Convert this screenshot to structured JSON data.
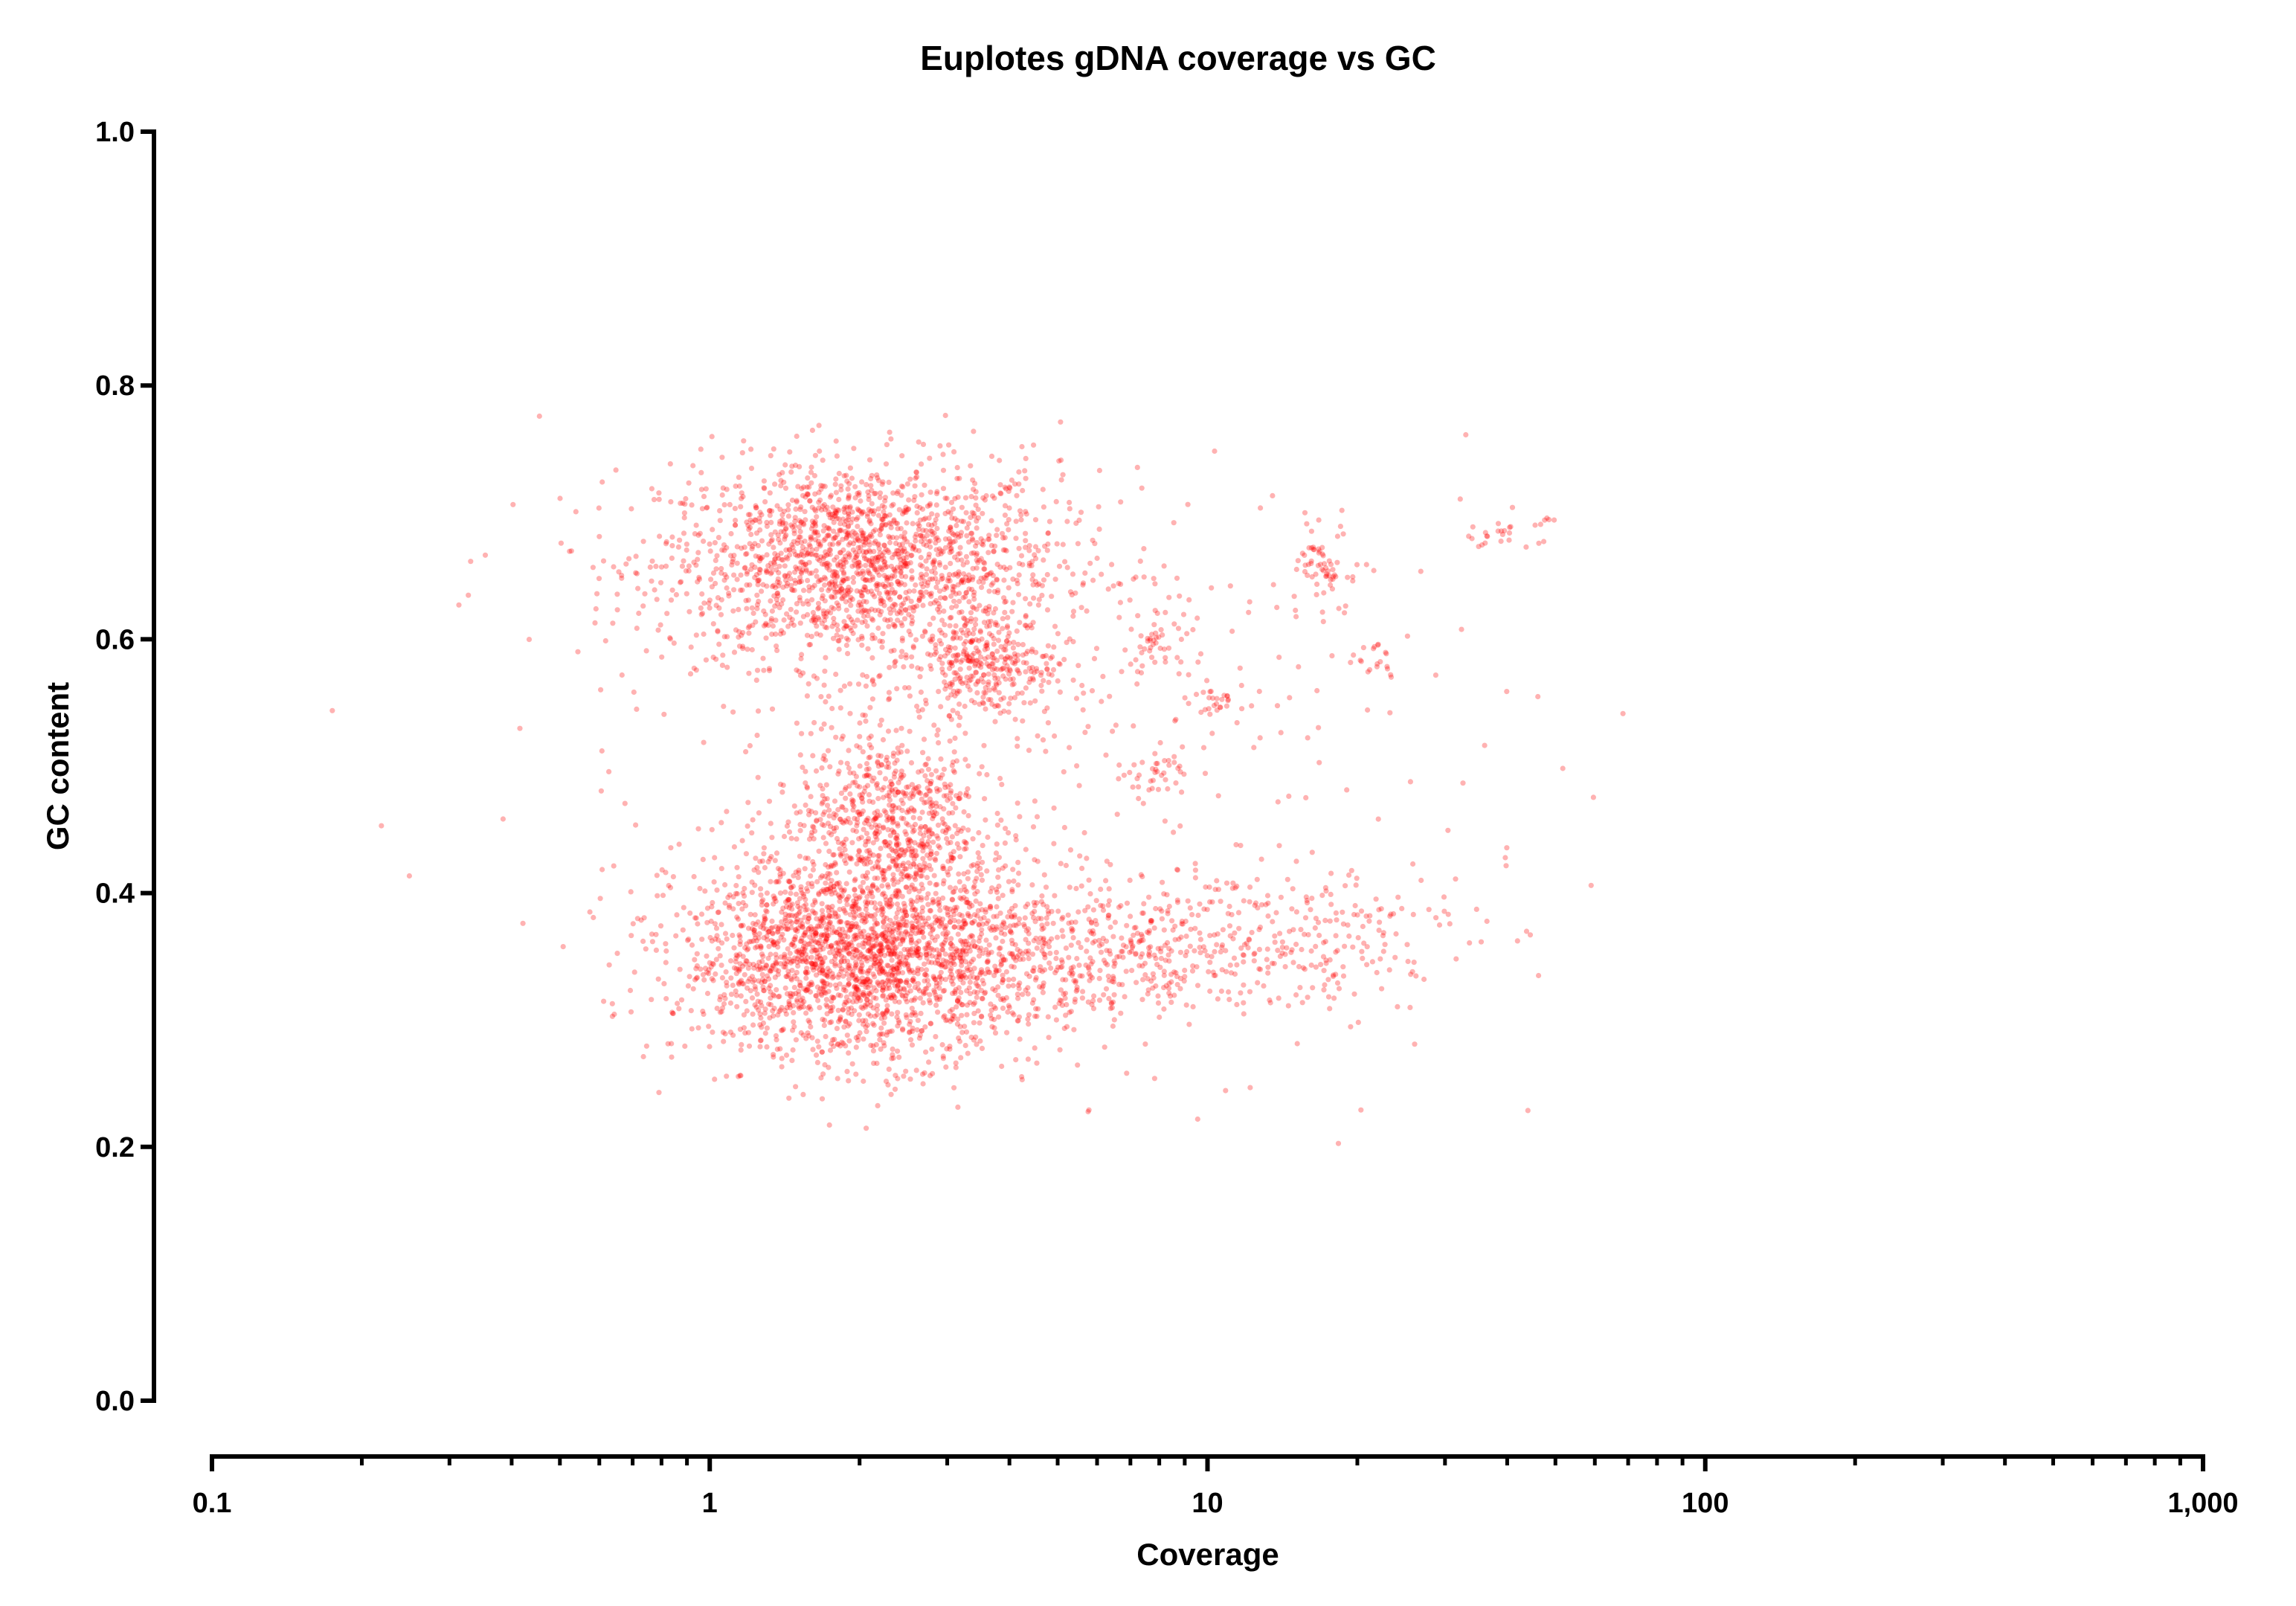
{
  "chart_data": {
    "type": "scatter",
    "title": "Euplotes gDNA coverage vs GC",
    "xlabel": "Coverage",
    "ylabel": "GC content",
    "x_scale": "log",
    "xlim": [
      0.1,
      1000
    ],
    "ylim": [
      0.0,
      1.0
    ],
    "x_ticks": [
      "0.1",
      "1",
      "10",
      "100",
      "1,000"
    ],
    "x_tick_values": [
      0.1,
      1,
      10,
      100,
      1000
    ],
    "y_ticks": [
      "0.0",
      "0.2",
      "0.4",
      "0.6",
      "0.8",
      "1.0"
    ],
    "y_tick_values": [
      0,
      0.2,
      0.4,
      0.6,
      0.8,
      1.0
    ],
    "grid": false,
    "legend": "none",
    "marker_color": "#ff0000",
    "marker_opacity": 0.3,
    "clusters": [
      {
        "coverage_center": 2.0,
        "gc_center": 0.66,
        "log10_coverage_sd": 0.2,
        "gc_sd": 0.04,
        "count": 1800
      },
      {
        "coverage_center": 3.6,
        "gc_center": 0.58,
        "log10_coverage_sd": 0.07,
        "gc_sd": 0.02,
        "count": 300
      },
      {
        "coverage_center": 2.3,
        "gc_center": 0.46,
        "log10_coverage_sd": 0.09,
        "gc_sd": 0.035,
        "count": 600
      },
      {
        "coverage_center": 2.0,
        "gc_center": 0.35,
        "log10_coverage_sd": 0.18,
        "gc_sd": 0.04,
        "count": 2200
      },
      {
        "coverage_center": 6.0,
        "gc_center": 0.35,
        "log10_coverage_sd": 0.22,
        "gc_sd": 0.025,
        "count": 500
      },
      {
        "coverage_center": 15,
        "gc_center": 0.37,
        "log10_coverage_sd": 0.18,
        "gc_sd": 0.03,
        "count": 200
      },
      {
        "coverage_center": 17.5,
        "gc_center": 0.655,
        "log10_coverage_sd": 0.03,
        "gc_sd": 0.015,
        "count": 60
      },
      {
        "coverage_center": 40,
        "gc_center": 0.685,
        "log10_coverage_sd": 0.04,
        "gc_sd": 0.008,
        "count": 30
      },
      {
        "coverage_center": 8,
        "gc_center": 0.6,
        "log10_coverage_sd": 0.04,
        "gc_sd": 0.01,
        "count": 40
      },
      {
        "coverage_center": 7.8,
        "gc_center": 0.495,
        "log10_coverage_sd": 0.03,
        "gc_sd": 0.01,
        "count": 30
      },
      {
        "coverage_center": 10.5,
        "gc_center": 0.55,
        "log10_coverage_sd": 0.03,
        "gc_sd": 0.01,
        "count": 30
      },
      {
        "coverage_center": 21,
        "gc_center": 0.585,
        "log10_coverage_sd": 0.03,
        "gc_sd": 0.01,
        "count": 20
      },
      {
        "coverage_center": 4.0,
        "gc_center": 0.5,
        "log10_coverage_sd": 0.45,
        "gc_sd": 0.12,
        "count": 450
      }
    ]
  }
}
